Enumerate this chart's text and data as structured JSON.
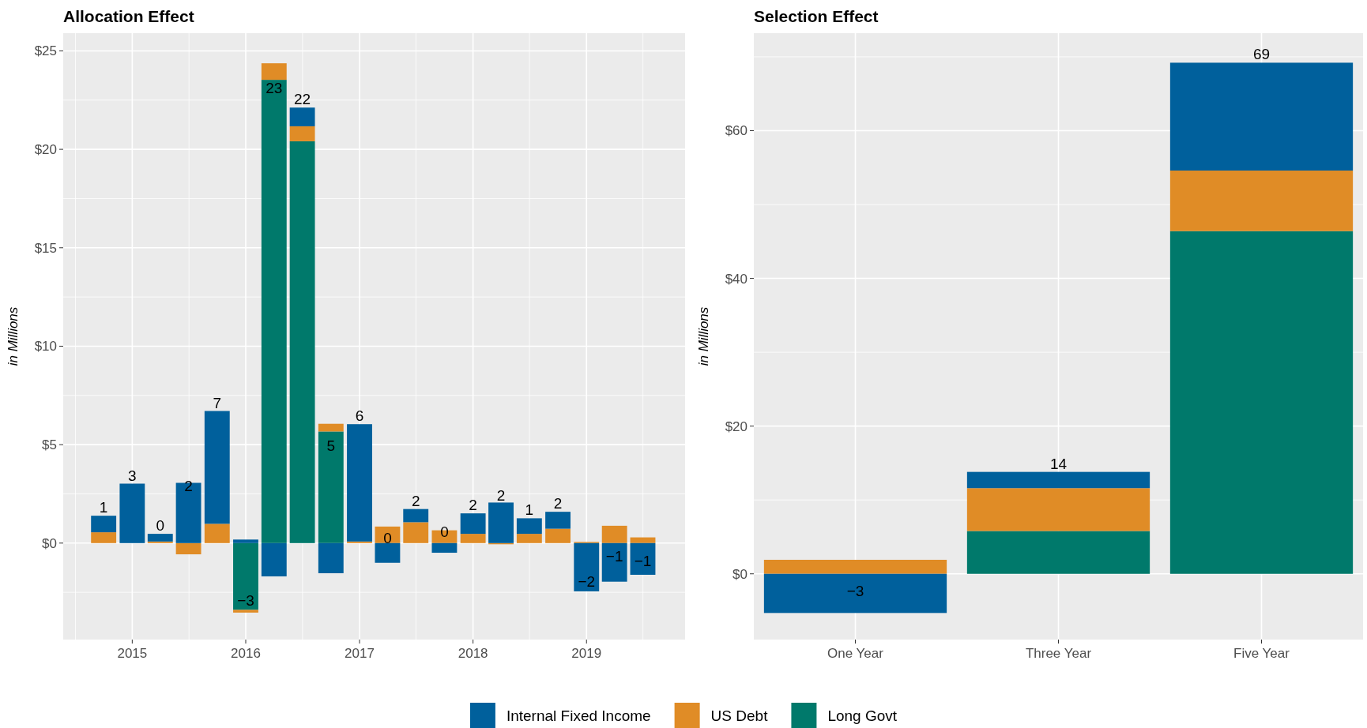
{
  "chart_data": [
    {
      "type": "bar",
      "title": "Allocation Effect",
      "ylabel": "in Millions",
      "stacked": true,
      "grid": true,
      "legend": "bottom",
      "x": [
        "2014-10",
        "2015-01",
        "2015-04",
        "2015-07",
        "2015-10",
        "2016-01",
        "2016-04",
        "2016-07",
        "2016-10",
        "2017-01",
        "2017-04",
        "2017-07",
        "2017-10",
        "2018-01",
        "2018-04",
        "2018-07",
        "2018-10",
        "2019-01",
        "2019-04",
        "2019-07"
      ],
      "xlim": [
        "2014-05-24",
        "2019-11-14"
      ],
      "xticks": [
        "2015",
        "2016",
        "2017",
        "2018",
        "2019"
      ],
      "ylim": [
        -4.9,
        25.9
      ],
      "yticks": [
        {
          "value": 0,
          "label": "$0"
        },
        {
          "value": 5,
          "label": "$5"
        },
        {
          "value": 10,
          "label": "$10"
        },
        {
          "value": 15,
          "label": "$15"
        },
        {
          "value": 20,
          "label": "$20"
        },
        {
          "value": 25,
          "label": "$25"
        }
      ],
      "series": [
        {
          "name": "Long Govt",
          "color": "#00796b",
          "values": [
            null,
            null,
            null,
            null,
            null,
            -3.39,
            23.53,
            20.41,
            5.67,
            null,
            null,
            null,
            null,
            null,
            null,
            null,
            null,
            null,
            null,
            null
          ]
        },
        {
          "name": "US Debt",
          "color": "#e08c26",
          "values": [
            0.55,
            null,
            0.08,
            -0.57,
            0.98,
            -0.14,
            0.84,
            0.76,
            0.39,
            0.08,
            0.84,
            1.06,
            0.65,
            0.47,
            -0.06,
            0.47,
            0.73,
            0.06,
            0.88,
            0.29
          ]
        },
        {
          "name": "Internal Fixed Income",
          "color": "#00609c",
          "values": [
            0.84,
            3.02,
            0.39,
            3.06,
            5.73,
            0.18,
            -1.69,
            0.95,
            -1.53,
            5.96,
            -1.0,
            0.67,
            -0.49,
            1.04,
            2.06,
            0.79,
            0.86,
            -2.45,
            -1.96,
            -1.61
          ]
        }
      ],
      "totals": [
        "1",
        "3",
        "0",
        "2",
        "7",
        "−3",
        "23",
        "22",
        "5",
        "6",
        "0",
        "2",
        "0",
        "2",
        "2",
        "1",
        "2",
        "−2",
        "−1",
        "−1"
      ]
    },
    {
      "type": "bar",
      "title": "Selection Effect",
      "ylabel": "in Millions",
      "stacked": true,
      "grid": true,
      "categories": [
        "One Year",
        "Three Year",
        "Five Year"
      ],
      "ylim": [
        -8.9,
        73.2
      ],
      "yticks": [
        {
          "value": 0,
          "label": "$0"
        },
        {
          "value": 20,
          "label": "$20"
        },
        {
          "value": 40,
          "label": "$40"
        },
        {
          "value": 60,
          "label": "$60"
        }
      ],
      "series": [
        {
          "color": "#00796b",
          "values": [
            null,
            5.8,
            46.4
          ]
        },
        {
          "color": "#e08c26",
          "values": [
            1.9,
            5.8,
            8.2
          ]
        },
        {
          "color": "#00609c",
          "values": [
            -5.3,
            2.2,
            14.6
          ]
        }
      ],
      "totals": [
        "−3",
        "14",
        "69"
      ]
    }
  ]
}
